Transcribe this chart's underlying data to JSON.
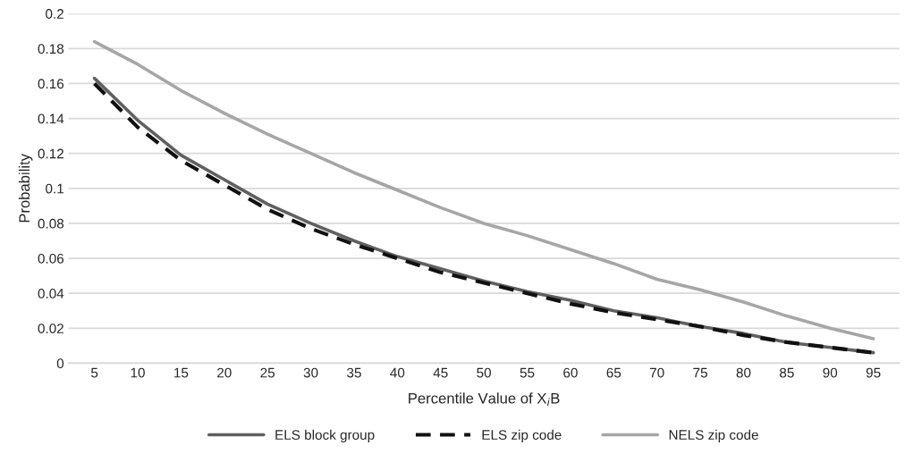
{
  "chart_data": {
    "type": "line",
    "xlabel": "Percentile Value of X$_{i}$B",
    "ylabel": "Probability",
    "categories": [
      "5",
      "10",
      "15",
      "20",
      "25",
      "30",
      "35",
      "40",
      "45",
      "50",
      "55",
      "60",
      "65",
      "70",
      "75",
      "80",
      "85",
      "90",
      "95"
    ],
    "series": [
      {
        "name": "ELS block group",
        "color": "#606060",
        "line_style": "solid",
        "values": [
          0.163,
          0.139,
          0.119,
          0.105,
          0.091,
          0.08,
          0.07,
          0.061,
          0.054,
          0.047,
          0.041,
          0.036,
          0.03,
          0.026,
          0.021,
          0.017,
          0.012,
          0.009,
          0.006
        ]
      },
      {
        "name": "ELS zip code",
        "color": "#111111",
        "line_style": "dashed",
        "values": [
          0.16,
          0.135,
          0.116,
          0.102,
          0.088,
          0.077,
          0.068,
          0.06,
          0.052,
          0.046,
          0.04,
          0.034,
          0.029,
          0.025,
          0.021,
          0.016,
          0.012,
          0.009,
          0.006
        ]
      },
      {
        "name": "NELS zip code",
        "color": "#a6a6a6",
        "line_style": "solid",
        "values": [
          0.184,
          0.171,
          0.156,
          0.143,
          0.131,
          0.12,
          0.109,
          0.099,
          0.089,
          0.08,
          0.073,
          0.065,
          0.057,
          0.048,
          0.042,
          0.035,
          0.027,
          0.02,
          0.014
        ]
      }
    ],
    "ylim": [
      0,
      0.2
    ],
    "yticks": [
      0,
      0.02,
      0.04,
      0.06,
      0.08,
      0.1,
      0.12,
      0.14,
      0.16,
      0.18,
      0.2
    ],
    "grid": "y",
    "legend": "bottom",
    "marker": "none"
  }
}
